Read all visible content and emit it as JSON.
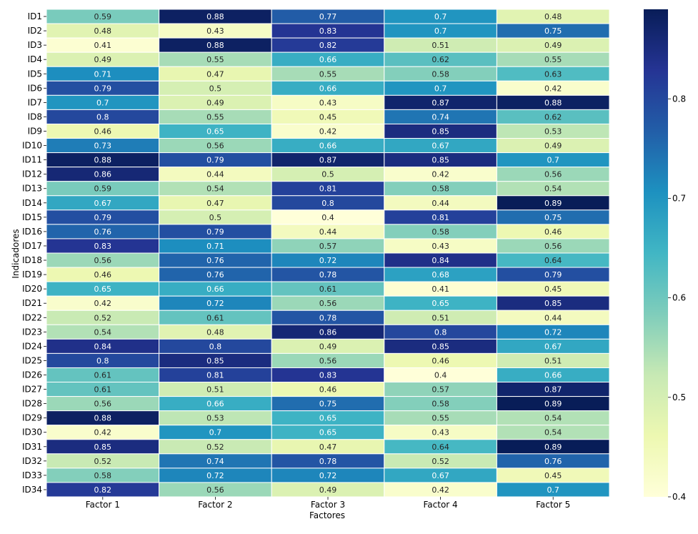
{
  "chart_data": {
    "type": "heatmap",
    "xlabel": "Factores",
    "ylabel": "Indicadores",
    "columns": [
      "Factor 1",
      "Factor 2",
      "Factor 3",
      "Factor 4",
      "Factor 5"
    ],
    "rows": [
      "ID1",
      "ID2",
      "ID3",
      "ID4",
      "ID5",
      "ID6",
      "ID7",
      "ID8",
      "ID9",
      "ID10",
      "ID11",
      "ID12",
      "ID13",
      "ID14",
      "ID15",
      "ID16",
      "ID17",
      "ID18",
      "ID19",
      "ID20",
      "ID21",
      "ID22",
      "ID23",
      "ID24",
      "ID25",
      "ID26",
      "ID27",
      "ID28",
      "ID29",
      "ID30",
      "ID31",
      "ID32",
      "ID33",
      "ID34"
    ],
    "values": [
      [
        0.59,
        0.88,
        0.77,
        0.7,
        0.48
      ],
      [
        0.48,
        0.43,
        0.83,
        0.7,
        0.75
      ],
      [
        0.41,
        0.88,
        0.82,
        0.51,
        0.49
      ],
      [
        0.49,
        0.55,
        0.66,
        0.62,
        0.55
      ],
      [
        0.71,
        0.47,
        0.55,
        0.58,
        0.63
      ],
      [
        0.79,
        0.5,
        0.66,
        0.7,
        0.42
      ],
      [
        0.7,
        0.49,
        0.43,
        0.87,
        0.88
      ],
      [
        0.8,
        0.55,
        0.45,
        0.74,
        0.62
      ],
      [
        0.46,
        0.65,
        0.42,
        0.85,
        0.53
      ],
      [
        0.73,
        0.56,
        0.66,
        0.67,
        0.49
      ],
      [
        0.88,
        0.79,
        0.87,
        0.85,
        0.7
      ],
      [
        0.86,
        0.44,
        0.5,
        0.42,
        0.56
      ],
      [
        0.59,
        0.54,
        0.81,
        0.58,
        0.54
      ],
      [
        0.67,
        0.47,
        0.8,
        0.44,
        0.89
      ],
      [
        0.79,
        0.5,
        0.4,
        0.81,
        0.75
      ],
      [
        0.76,
        0.79,
        0.44,
        0.58,
        0.46
      ],
      [
        0.83,
        0.71,
        0.57,
        0.43,
        0.56
      ],
      [
        0.56,
        0.76,
        0.72,
        0.84,
        0.64
      ],
      [
        0.46,
        0.76,
        0.78,
        0.68,
        0.79
      ],
      [
        0.65,
        0.66,
        0.61,
        0.41,
        0.45
      ],
      [
        0.42,
        0.72,
        0.56,
        0.65,
        0.85
      ],
      [
        0.52,
        0.61,
        0.78,
        0.51,
        0.44
      ],
      [
        0.54,
        0.48,
        0.86,
        0.8,
        0.72
      ],
      [
        0.84,
        0.8,
        0.49,
        0.85,
        0.67
      ],
      [
        0.8,
        0.85,
        0.56,
        0.46,
        0.51
      ],
      [
        0.61,
        0.81,
        0.83,
        0.4,
        0.66
      ],
      [
        0.61,
        0.51,
        0.46,
        0.57,
        0.87
      ],
      [
        0.56,
        0.66,
        0.75,
        0.58,
        0.89
      ],
      [
        0.88,
        0.53,
        0.65,
        0.55,
        0.54
      ],
      [
        0.42,
        0.7,
        0.65,
        0.43,
        0.54
      ],
      [
        0.85,
        0.52,
        0.47,
        0.64,
        0.89
      ],
      [
        0.52,
        0.74,
        0.78,
        0.52,
        0.76
      ],
      [
        0.58,
        0.72,
        0.72,
        0.67,
        0.45
      ],
      [
        0.82,
        0.56,
        0.49,
        0.42,
        0.7
      ]
    ],
    "vmin": 0.4,
    "vmax": 0.89,
    "colormap": "YlGnBu",
    "colorbar_ticks": [
      0.4,
      0.5,
      0.6,
      0.7,
      0.8
    ],
    "annotated": true,
    "colorbar_position": "right"
  }
}
